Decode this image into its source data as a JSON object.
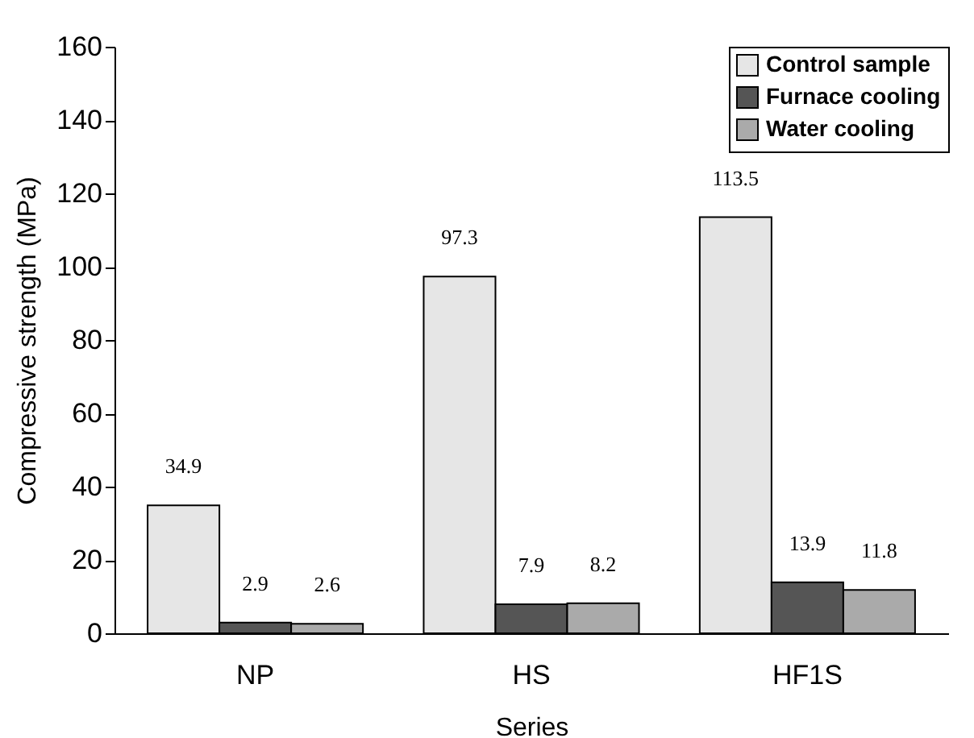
{
  "chart_data": {
    "type": "bar",
    "xlabel": "Series",
    "ylabel": "Compressive strength (MPa)",
    "categories": [
      "NP",
      "HS",
      "HF1S"
    ],
    "series": [
      {
        "name": "Control sample",
        "color": "#e6e6e6",
        "values": [
          34.9,
          97.3,
          113.5
        ]
      },
      {
        "name": "Furnace cooling",
        "color": "#555555",
        "values": [
          2.9,
          7.9,
          13.9
        ]
      },
      {
        "name": "Water cooling",
        "color": "#aaaaaa",
        "values": [
          2.6,
          8.2,
          11.8
        ]
      }
    ],
    "ylim": [
      0,
      160
    ],
    "yticks": [
      0,
      20,
      40,
      60,
      80,
      100,
      120,
      140,
      160
    ],
    "grid": false,
    "legend": "top right",
    "data_labels": true
  }
}
